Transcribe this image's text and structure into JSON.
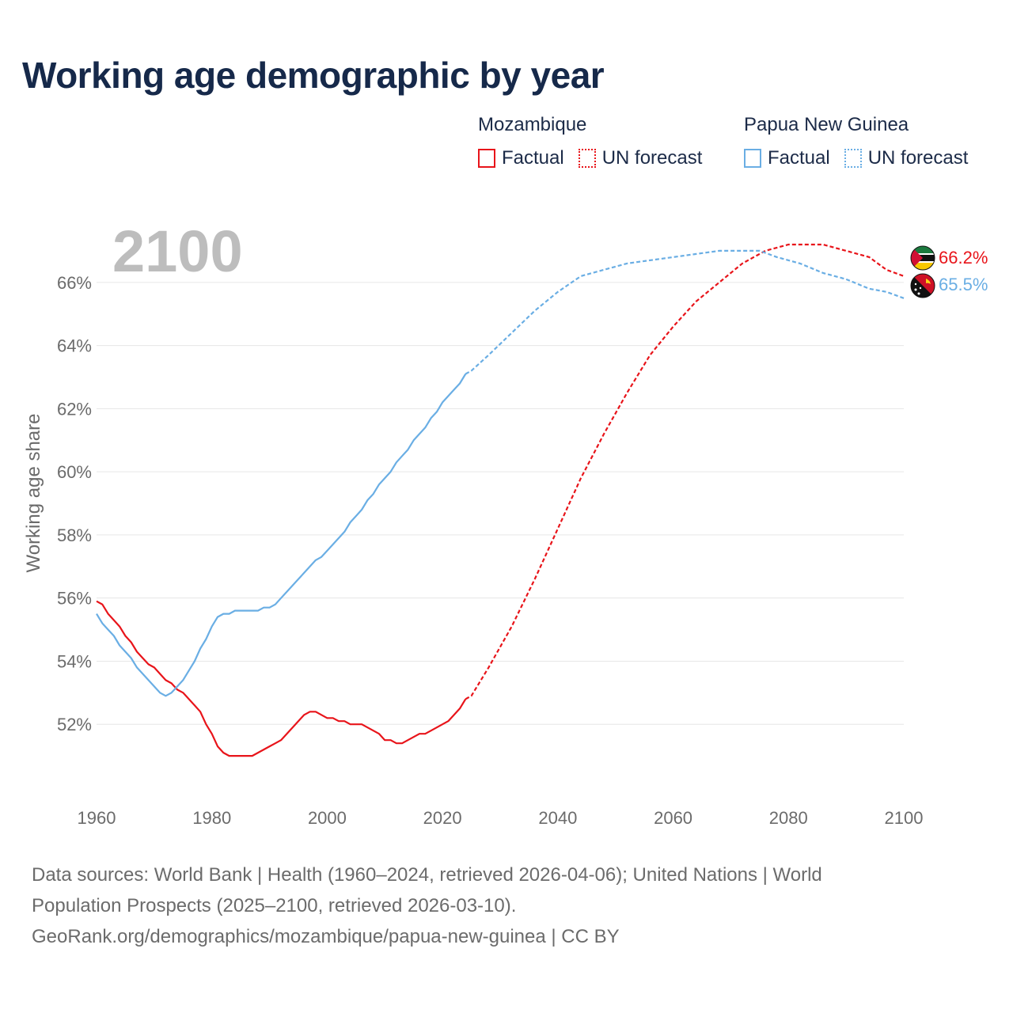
{
  "title": "Working age demographic by year",
  "legend": [
    {
      "name": "Mozambique",
      "factual_label": "Factual",
      "forecast_label": "UN forecast",
      "color": "#e8141a"
    },
    {
      "name": "Papua New Guinea",
      "factual_label": "Factual",
      "forecast_label": "UN forecast",
      "color": "#6aaee4"
    }
  ],
  "year_label": "2100",
  "source_lines": [
    "Data sources: World Bank | Health (1960–2024, retrieved 2026-04-06); United Nations | World",
    "Population Prospects (2025–2100, retrieved 2026-03-10).",
    "GeoRank.org/demographics/mozambique/papua-new-guinea | CC BY"
  ],
  "chart_data": {
    "type": "line",
    "title": "Working age demographic by year",
    "xlabel": "",
    "ylabel": "Working age share",
    "xlim": [
      1960,
      2100
    ],
    "ylim": [
      50,
      67.5
    ],
    "x_ticks": [
      1960,
      1980,
      2000,
      2020,
      2040,
      2060,
      2080,
      2100
    ],
    "y_ticks": [
      52,
      54,
      56,
      58,
      60,
      62,
      64,
      66
    ],
    "y_tick_labels": [
      "52%",
      "54%",
      "56%",
      "58%",
      "60%",
      "62%",
      "64%",
      "66%"
    ],
    "grid": true,
    "legend_position": "top-right",
    "forecast_start": 2024,
    "series": [
      {
        "name": "Mozambique",
        "color": "#e8141a",
        "end_label": "66.2%",
        "flag_icon": "mozambique-flag-icon",
        "points": [
          [
            1960,
            55.9
          ],
          [
            1961,
            55.8
          ],
          [
            1962,
            55.5
          ],
          [
            1963,
            55.3
          ],
          [
            1964,
            55.1
          ],
          [
            1965,
            54.8
          ],
          [
            1966,
            54.6
          ],
          [
            1967,
            54.3
          ],
          [
            1968,
            54.1
          ],
          [
            1969,
            53.9
          ],
          [
            1970,
            53.8
          ],
          [
            1971,
            53.6
          ],
          [
            1972,
            53.4
          ],
          [
            1973,
            53.3
          ],
          [
            1974,
            53.1
          ],
          [
            1975,
            53.0
          ],
          [
            1976,
            52.8
          ],
          [
            1977,
            52.6
          ],
          [
            1978,
            52.4
          ],
          [
            1979,
            52.0
          ],
          [
            1980,
            51.7
          ],
          [
            1981,
            51.3
          ],
          [
            1982,
            51.1
          ],
          [
            1983,
            51.0
          ],
          [
            1984,
            51.0
          ],
          [
            1985,
            51.0
          ],
          [
            1986,
            51.0
          ],
          [
            1987,
            51.0
          ],
          [
            1988,
            51.1
          ],
          [
            1989,
            51.2
          ],
          [
            1990,
            51.3
          ],
          [
            1991,
            51.4
          ],
          [
            1992,
            51.5
          ],
          [
            1993,
            51.7
          ],
          [
            1994,
            51.9
          ],
          [
            1995,
            52.1
          ],
          [
            1996,
            52.3
          ],
          [
            1997,
            52.4
          ],
          [
            1998,
            52.4
          ],
          [
            1999,
            52.3
          ],
          [
            2000,
            52.2
          ],
          [
            2001,
            52.2
          ],
          [
            2002,
            52.1
          ],
          [
            2003,
            52.1
          ],
          [
            2004,
            52.0
          ],
          [
            2005,
            52.0
          ],
          [
            2006,
            52.0
          ],
          [
            2007,
            51.9
          ],
          [
            2008,
            51.8
          ],
          [
            2009,
            51.7
          ],
          [
            2010,
            51.5
          ],
          [
            2011,
            51.5
          ],
          [
            2012,
            51.4
          ],
          [
            2013,
            51.4
          ],
          [
            2014,
            51.5
          ],
          [
            2015,
            51.6
          ],
          [
            2016,
            51.7
          ],
          [
            2017,
            51.7
          ],
          [
            2018,
            51.8
          ],
          [
            2019,
            51.9
          ],
          [
            2020,
            52.0
          ],
          [
            2021,
            52.1
          ],
          [
            2022,
            52.3
          ],
          [
            2023,
            52.5
          ],
          [
            2024,
            52.8
          ],
          [
            2025,
            52.9
          ],
          [
            2028,
            53.8
          ],
          [
            2032,
            55.1
          ],
          [
            2036,
            56.6
          ],
          [
            2040,
            58.2
          ],
          [
            2044,
            59.8
          ],
          [
            2048,
            61.2
          ],
          [
            2052,
            62.5
          ],
          [
            2056,
            63.7
          ],
          [
            2060,
            64.6
          ],
          [
            2064,
            65.4
          ],
          [
            2068,
            66.0
          ],
          [
            2072,
            66.6
          ],
          [
            2076,
            67.0
          ],
          [
            2080,
            67.2
          ],
          [
            2086,
            67.2
          ],
          [
            2090,
            67.0
          ],
          [
            2094,
            66.8
          ],
          [
            2097,
            66.4
          ],
          [
            2100,
            66.2
          ]
        ]
      },
      {
        "name": "Papua New Guinea",
        "color": "#6aaee4",
        "end_label": "65.5%",
        "flag_icon": "papua-new-guinea-flag-icon",
        "points": [
          [
            1960,
            55.5
          ],
          [
            1961,
            55.2
          ],
          [
            1962,
            55.0
          ],
          [
            1963,
            54.8
          ],
          [
            1964,
            54.5
          ],
          [
            1965,
            54.3
          ],
          [
            1966,
            54.1
          ],
          [
            1967,
            53.8
          ],
          [
            1968,
            53.6
          ],
          [
            1969,
            53.4
          ],
          [
            1970,
            53.2
          ],
          [
            1971,
            53.0
          ],
          [
            1972,
            52.9
          ],
          [
            1973,
            53.0
          ],
          [
            1974,
            53.2
          ],
          [
            1975,
            53.4
          ],
          [
            1976,
            53.7
          ],
          [
            1977,
            54.0
          ],
          [
            1978,
            54.4
          ],
          [
            1979,
            54.7
          ],
          [
            1980,
            55.1
          ],
          [
            1981,
            55.4
          ],
          [
            1982,
            55.5
          ],
          [
            1983,
            55.5
          ],
          [
            1984,
            55.6
          ],
          [
            1985,
            55.6
          ],
          [
            1986,
            55.6
          ],
          [
            1987,
            55.6
          ],
          [
            1988,
            55.6
          ],
          [
            1989,
            55.7
          ],
          [
            1990,
            55.7
          ],
          [
            1991,
            55.8
          ],
          [
            1992,
            56.0
          ],
          [
            1993,
            56.2
          ],
          [
            1994,
            56.4
          ],
          [
            1995,
            56.6
          ],
          [
            1996,
            56.8
          ],
          [
            1997,
            57.0
          ],
          [
            1998,
            57.2
          ],
          [
            1999,
            57.3
          ],
          [
            2000,
            57.5
          ],
          [
            2001,
            57.7
          ],
          [
            2002,
            57.9
          ],
          [
            2003,
            58.1
          ],
          [
            2004,
            58.4
          ],
          [
            2005,
            58.6
          ],
          [
            2006,
            58.8
          ],
          [
            2007,
            59.1
          ],
          [
            2008,
            59.3
          ],
          [
            2009,
            59.6
          ],
          [
            2010,
            59.8
          ],
          [
            2011,
            60.0
          ],
          [
            2012,
            60.3
          ],
          [
            2013,
            60.5
          ],
          [
            2014,
            60.7
          ],
          [
            2015,
            61.0
          ],
          [
            2016,
            61.2
          ],
          [
            2017,
            61.4
          ],
          [
            2018,
            61.7
          ],
          [
            2019,
            61.9
          ],
          [
            2020,
            62.2
          ],
          [
            2021,
            62.4
          ],
          [
            2022,
            62.6
          ],
          [
            2023,
            62.8
          ],
          [
            2024,
            63.1
          ],
          [
            2025,
            63.2
          ],
          [
            2028,
            63.7
          ],
          [
            2032,
            64.4
          ],
          [
            2036,
            65.1
          ],
          [
            2040,
            65.7
          ],
          [
            2044,
            66.2
          ],
          [
            2048,
            66.4
          ],
          [
            2052,
            66.6
          ],
          [
            2056,
            66.7
          ],
          [
            2060,
            66.8
          ],
          [
            2064,
            66.9
          ],
          [
            2068,
            67.0
          ],
          [
            2075,
            67.0
          ],
          [
            2078,
            66.8
          ],
          [
            2082,
            66.6
          ],
          [
            2086,
            66.3
          ],
          [
            2090,
            66.1
          ],
          [
            2094,
            65.8
          ],
          [
            2097,
            65.7
          ],
          [
            2100,
            65.5
          ]
        ]
      }
    ]
  }
}
